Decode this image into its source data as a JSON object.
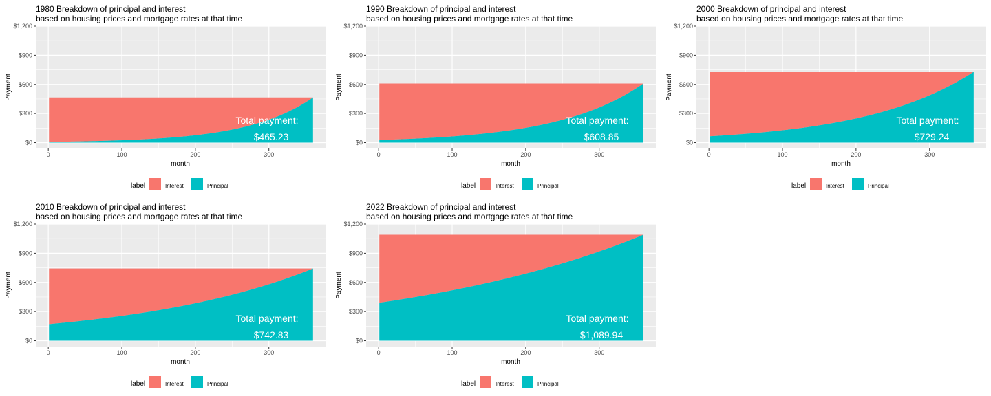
{
  "colors": {
    "interest": "#F8766D",
    "principal": "#00BFC4",
    "panel_bg": "#EBEBEB",
    "grid": "#FFFFFF",
    "text": "#000000",
    "tick": "#4D4D4D",
    "annotation": "#FFFFFF"
  },
  "chart_data": [
    {
      "type": "area",
      "title": "1980 Breakdown of principal and interest",
      "subtitle": " based on housing prices and mortgage rates at that time",
      "xlabel": "month",
      "ylabel": "Payment",
      "xlim": [
        -17,
        377
      ],
      "ylim": [
        -60,
        1200
      ],
      "x_ticks": [
        0,
        100,
        200,
        300
      ],
      "y_ticks": [
        0,
        300,
        600,
        900,
        1200
      ],
      "y_tick_labels": [
        "$0",
        "$300",
        "$600",
        "$900",
        "$1,200"
      ],
      "grid": true,
      "stacked": true,
      "months": 360,
      "total_payment": 465.23,
      "principal_start": 8,
      "principal_end": 465.23,
      "annotation_label": "Total payment:",
      "annotation_value": "$465.23",
      "legend": {
        "position": "bottom",
        "title": "label",
        "entries": [
          "Interest",
          "Principal"
        ]
      }
    },
    {
      "type": "area",
      "title": "1990 Breakdown of principal and interest",
      "subtitle": " based on housing prices and mortgage rates at that time",
      "xlabel": "month",
      "ylabel": "Payment",
      "xlim": [
        -17,
        377
      ],
      "ylim": [
        -60,
        1200
      ],
      "x_ticks": [
        0,
        100,
        200,
        300
      ],
      "y_ticks": [
        0,
        300,
        600,
        900,
        1200
      ],
      "y_tick_labels": [
        "$0",
        "$300",
        "$600",
        "$900",
        "$1,200"
      ],
      "grid": true,
      "stacked": true,
      "months": 360,
      "total_payment": 608.85,
      "principal_start": 27,
      "principal_end": 608.85,
      "annotation_label": "Total payment:",
      "annotation_value": "$608.85",
      "legend": {
        "position": "bottom",
        "title": "label",
        "entries": [
          "Interest",
          "Principal"
        ]
      }
    },
    {
      "type": "area",
      "title": "2000 Breakdown of principal and interest",
      "subtitle": " based on housing prices and mortgage rates at that time",
      "xlabel": "month",
      "ylabel": "Payment",
      "xlim": [
        -17,
        377
      ],
      "ylim": [
        -60,
        1200
      ],
      "x_ticks": [
        0,
        100,
        200,
        300
      ],
      "y_ticks": [
        0,
        300,
        600,
        900,
        1200
      ],
      "y_tick_labels": [
        "$0",
        "$300",
        "$600",
        "$900",
        "$1,200"
      ],
      "grid": true,
      "stacked": true,
      "months": 360,
      "total_payment": 729.24,
      "principal_start": 65,
      "principal_end": 729.24,
      "annotation_label": "Total payment:",
      "annotation_value": "$729.24",
      "legend": {
        "position": "bottom",
        "title": "label",
        "entries": [
          "Interest",
          "Principal"
        ]
      }
    },
    {
      "type": "area",
      "title": "2010 Breakdown of principal and interest",
      "subtitle": " based on housing prices and mortgage rates at that time",
      "xlabel": "month",
      "ylabel": "Payment",
      "xlim": [
        -17,
        377
      ],
      "ylim": [
        -60,
        1200
      ],
      "x_ticks": [
        0,
        100,
        200,
        300
      ],
      "y_ticks": [
        0,
        300,
        600,
        900,
        1200
      ],
      "y_tick_labels": [
        "$0",
        "$300",
        "$600",
        "$900",
        "$1,200"
      ],
      "grid": true,
      "stacked": true,
      "months": 360,
      "total_payment": 742.83,
      "principal_start": 170,
      "principal_end": 742.83,
      "annotation_label": "Total payment:",
      "annotation_value": "$742.83",
      "legend": {
        "position": "bottom",
        "title": "label",
        "entries": [
          "Interest",
          "Principal"
        ]
      }
    },
    {
      "type": "area",
      "title": "2022 Breakdown of principal and interest",
      "subtitle": " based on housing prices and mortgage rates at that time",
      "xlabel": "month",
      "ylabel": "Payment",
      "xlim": [
        -17,
        377
      ],
      "ylim": [
        -60,
        1200
      ],
      "x_ticks": [
        0,
        100,
        200,
        300
      ],
      "y_ticks": [
        0,
        300,
        600,
        900,
        1200
      ],
      "y_tick_labels": [
        "$0",
        "$300",
        "$600",
        "$900",
        "$1,200"
      ],
      "grid": true,
      "stacked": true,
      "months": 360,
      "total_payment": 1089.94,
      "principal_start": 390,
      "principal_end": 1089.94,
      "annotation_label": "Total payment:",
      "annotation_value": "$1,089.94",
      "legend": {
        "position": "bottom",
        "title": "label",
        "entries": [
          "Interest",
          "Principal"
        ]
      }
    }
  ]
}
